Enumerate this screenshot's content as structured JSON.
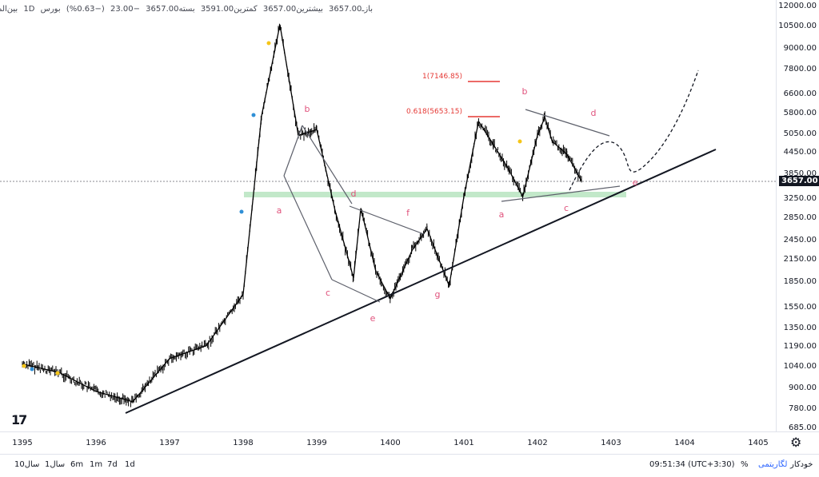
{
  "legend": {
    "symbol": "بین‌المللی‌توسعه‌ساختمان",
    "interval": "1D",
    "exchange": "بورس",
    "open": "بازـ3657.00",
    "high": "بیشترین3657.00",
    "low": "کمترین3591.00",
    "close": "بسته3657.00",
    "change": "−23.00",
    "change_pct": "(−0.63%)"
  },
  "price_axis": {
    "ticks": [
      "12000.00",
      "10500.00",
      "9000.00",
      "7800.00",
      "6600.00",
      "5800.00",
      "5050.00",
      "4450.00",
      "3850.00",
      "3250.00",
      "2850.00",
      "2450.00",
      "2150.00",
      "1850.00",
      "1550.00",
      "1350.00",
      "1190.00",
      "1040.00",
      "900.00",
      "780.00",
      "685.00"
    ],
    "current_price": "3657.00"
  },
  "time_axis": {
    "ticks": [
      "1395",
      "1396",
      "1397",
      "1398",
      "1399",
      "1400",
      "1401",
      "1402",
      "1403",
      "1404",
      "1405"
    ]
  },
  "bottom_bar": {
    "ranges": [
      "1d",
      "7d",
      "1m",
      "6m",
      "1سال",
      "10سال"
    ],
    "time": "09:51:34 (UTC+3:30)",
    "percent": "%",
    "log": "لگاریتمی",
    "auto": "خودکار"
  },
  "annotations": {
    "fib_1": "1(7146.85)",
    "fib_0618": "0.618(5653.15)",
    "labels": [
      "a",
      "b",
      "c",
      "d",
      "e",
      "f",
      "g",
      "a",
      "b",
      "c",
      "d",
      "e"
    ]
  },
  "colors": {
    "candles": "#000000",
    "labels": "#e0527c",
    "fib": "#e53935",
    "zone": "#b7e4c0",
    "trendline": "#131722"
  },
  "chart_data": {
    "type": "line",
    "scale": "log",
    "x_label": "",
    "y_label": "",
    "x": [
      "1395",
      "1395.5",
      "1396",
      "1396.5",
      "1397",
      "1397.5",
      "1398",
      "1398.25",
      "1398.5",
      "1398.75",
      "1399",
      "1399.25",
      "1399.5",
      "1399.6",
      "1399.8",
      "1400",
      "1400.3",
      "1400.5",
      "1400.8",
      "1401",
      "1401.2",
      "1401.4",
      "1401.6",
      "1401.8",
      "1402",
      "1402.1",
      "1402.2",
      "1402.4",
      "1402.6"
    ],
    "series": [
      {
        "values": [
          1060,
          1000,
          880,
          820,
          1100,
          1200,
          1700,
          5700,
          10600,
          5000,
          5200,
          3000,
          1900,
          3050,
          2000,
          1650,
          2300,
          2650,
          1800,
          3300,
          5500,
          4700,
          4000,
          3300,
          5000,
          5650,
          4800,
          4400,
          3657
        ]
      }
    ],
    "ylim": [
      685,
      12000
    ],
    "current_price": 3657
  }
}
